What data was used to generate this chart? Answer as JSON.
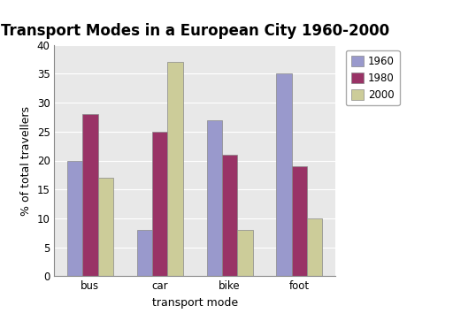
{
  "title": "Transport Modes in a European City 1960-2000",
  "categories": [
    "bus",
    "car",
    "bike",
    "foot"
  ],
  "years": [
    "1960",
    "1980",
    "2000"
  ],
  "values": {
    "1960": [
      20,
      8,
      27,
      35
    ],
    "1980": [
      28,
      25,
      21,
      19
    ],
    "2000": [
      17,
      37,
      8,
      10
    ]
  },
  "bar_colors": {
    "1960": "#9999CC",
    "1980": "#993366",
    "2000": "#CCCC99"
  },
  "xlabel": "transport mode",
  "ylabel": "% of total travellers",
  "ylim": [
    0,
    40
  ],
  "yticks": [
    0,
    5,
    10,
    15,
    20,
    25,
    30,
    35,
    40
  ],
  "title_fontsize": 12,
  "axis_label_fontsize": 9,
  "tick_fontsize": 8.5,
  "legend_fontsize": 8.5,
  "plot_bg_color": "#E8E8E8",
  "fig_bg_color": "#ffffff",
  "grid_color": "#ffffff"
}
